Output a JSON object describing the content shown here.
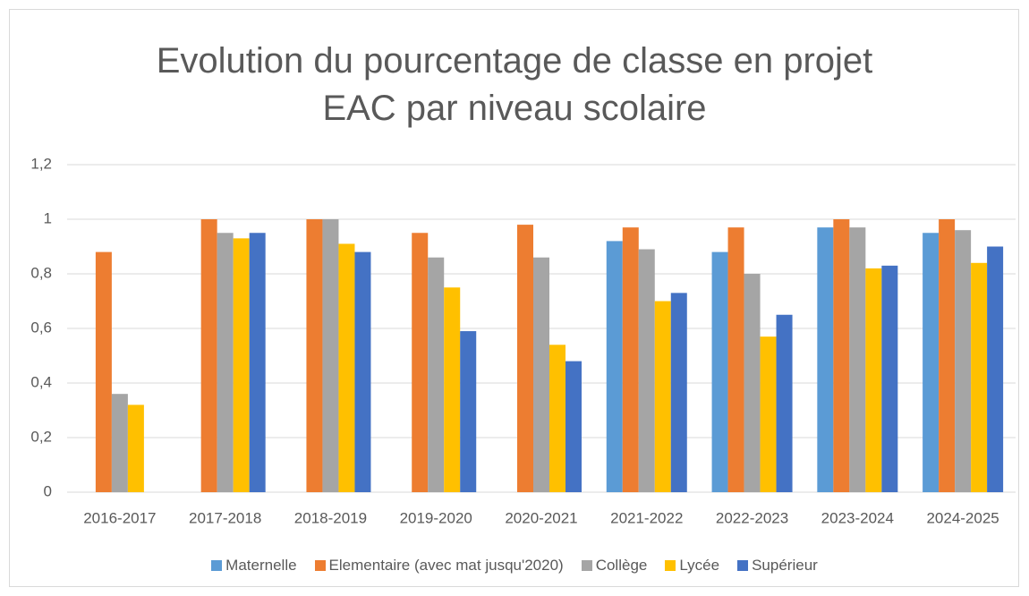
{
  "chart_data": {
    "type": "bar",
    "title": "Evolution du pourcentage de classe en projet EAC par niveau scolaire",
    "categories": [
      "2016-2017",
      "2017-2018",
      "2018-2019",
      "2019-2020",
      "2020-2021",
      "2021-2022",
      "2022-2023",
      "2023-2024",
      "2024-2025"
    ],
    "series": [
      {
        "name": "Maternelle",
        "color": "#5b9bd5",
        "values": [
          null,
          null,
          null,
          null,
          null,
          0.92,
          0.88,
          0.97,
          0.95
        ]
      },
      {
        "name": "Elementaire (avec mat jusqu'2020)",
        "color": "#ed7d31",
        "values": [
          0.88,
          1.0,
          1.0,
          0.95,
          0.98,
          0.97,
          0.97,
          1.0,
          1.0
        ]
      },
      {
        "name": "Collège",
        "color": "#a5a5a5",
        "values": [
          0.36,
          0.95,
          1.0,
          0.86,
          0.86,
          0.89,
          0.8,
          0.97,
          0.96
        ]
      },
      {
        "name": "Lycée",
        "color": "#ffc000",
        "values": [
          0.32,
          0.93,
          0.91,
          0.75,
          0.54,
          0.7,
          0.57,
          0.82,
          0.84
        ]
      },
      {
        "name": "Supérieur",
        "color": "#4472c4",
        "values": [
          null,
          0.95,
          0.88,
          0.59,
          0.48,
          0.73,
          0.65,
          0.83,
          0.9
        ]
      }
    ],
    "ylim": [
      0,
      1.2
    ],
    "yticks": [
      0,
      {
        "value": 0.2,
        "label": "0,2"
      },
      {
        "value": 0.4,
        "label": "0,4"
      },
      {
        "value": 0.6,
        "label": "0,6"
      },
      {
        "value": 0.8,
        "label": "0,8"
      },
      1,
      {
        "value": 1.2,
        "label": "1,2"
      }
    ],
    "grid": true,
    "legend": "bottom"
  }
}
